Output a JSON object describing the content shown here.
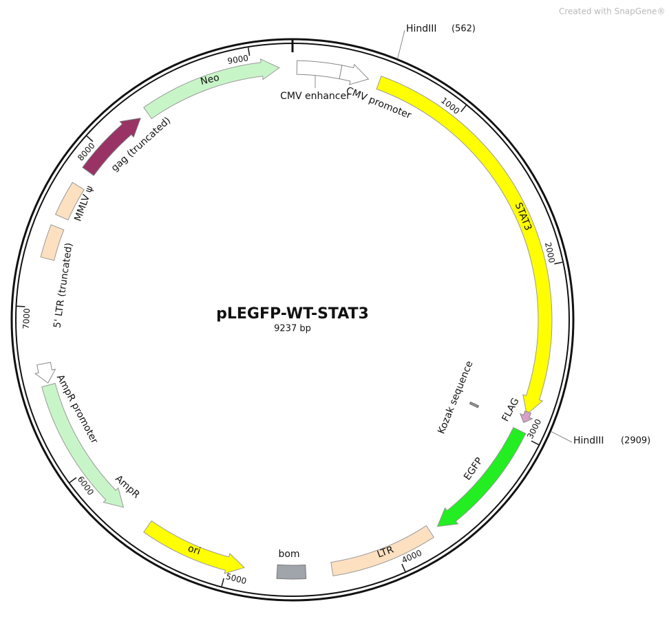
{
  "watermark": "Created with SnapGene®",
  "plasmid": {
    "name": "pLEGFP-WT-STAT3",
    "length": {
      "value": 9237,
      "label": "9237 bp"
    },
    "ticks": [
      1000,
      2000,
      3000,
      4000,
      5000,
      6000,
      7000,
      8000,
      9000
    ],
    "sites": [
      {
        "enzyme": "HindIII",
        "position": {
          "value": 562,
          "label": "(562)"
        }
      },
      {
        "enzyme": "HindIII",
        "position": {
          "value": 2909,
          "label": "(2909)"
        }
      }
    ],
    "features": [
      "CMV enhancer",
      "CMV promoter",
      "STAT3",
      "Kozak sequence",
      "FLAG",
      "EGFP",
      "LTR",
      "bom",
      "ori",
      "AmpR",
      "AmpR promoter",
      "5' LTR (truncated)",
      "MMLV ψ",
      "gag (truncated)",
      "Neo"
    ]
  }
}
